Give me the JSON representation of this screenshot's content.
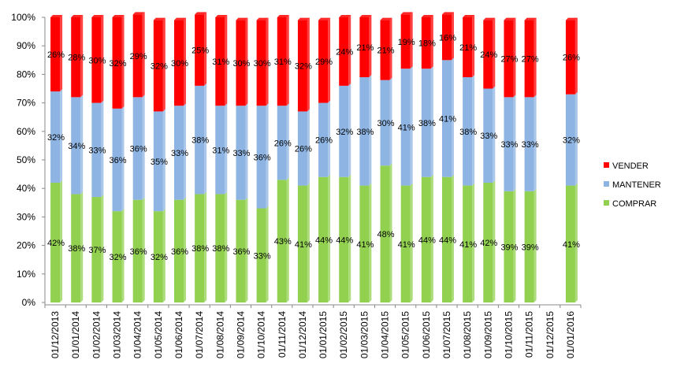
{
  "chart_data": {
    "type": "bar",
    "stacked": "percent",
    "categories": [
      "01/12/2013",
      "01/01/2014",
      "01/02/2014",
      "01/03/2014",
      "01/04/2014",
      "01/05/2014",
      "01/06/2014",
      "01/07/2014",
      "01/08/2014",
      "01/09/2014",
      "01/10/2014",
      "01/11/2014",
      "01/12/2014",
      "01/01/2015",
      "01/02/2015",
      "01/03/2015",
      "01/04/2015",
      "01/05/2015",
      "01/06/2015",
      "01/07/2015",
      "01/08/2015",
      "01/09/2015",
      "01/10/2015",
      "01/11/2015",
      "01/12/2015",
      "01/01/2016"
    ],
    "series": [
      {
        "name": "COMPRAR",
        "color": "#92d050",
        "values": [
          42,
          38,
          37,
          32,
          36,
          32,
          36,
          38,
          38,
          36,
          33,
          43,
          41,
          44,
          44,
          41,
          48,
          41,
          44,
          44,
          41,
          42,
          39,
          39,
          null,
          41
        ],
        "labels": [
          "42%",
          "38%",
          "37%",
          "32%",
          "36%",
          "32%",
          "36%",
          "38%",
          "38%",
          "36%",
          "33%",
          "43%",
          "41%",
          "44%",
          "44%",
          "41%",
          "48%",
          "41%",
          "44%",
          "44%",
          "41%",
          "42%",
          "39%",
          "39%",
          "",
          "41%"
        ]
      },
      {
        "name": "MANTENER",
        "color": "#8db4e2",
        "values": [
          32,
          34,
          33,
          36,
          36,
          35,
          33,
          38,
          31,
          33,
          36,
          26,
          26,
          26,
          32,
          38,
          30,
          41,
          38,
          41,
          38,
          33,
          33,
          33,
          null,
          32
        ],
        "labels": [
          "32%",
          "34%",
          "33%",
          "36%",
          "36%",
          "35%",
          "33%",
          "38%",
          "31%",
          "33%",
          "36%",
          "26%",
          "26%",
          "26%",
          "32%",
          "38%",
          "30%",
          "41%",
          "38%",
          "41%",
          "38%",
          "33%",
          "33%",
          "33%",
          "",
          "32%"
        ]
      },
      {
        "name": "VENDER",
        "color": "#ff0000",
        "values": [
          26,
          28,
          30,
          32,
          29,
          32,
          30,
          25,
          31,
          30,
          30,
          31,
          32,
          29,
          24,
          21,
          21,
          19,
          18,
          16,
          21,
          24,
          27,
          27,
          null,
          26
        ],
        "labels": [
          "26%",
          "28%",
          "30%",
          "32%",
          "29%",
          "32%",
          "30%",
          "25%",
          "31%",
          "30%",
          "30%",
          "31%",
          "32%",
          "29%",
          "24%",
          "21%",
          "21%",
          "19%",
          "18%",
          "16%",
          "21%",
          "24%",
          "27%",
          "27%",
          "",
          "26%"
        ]
      }
    ],
    "yticks": [
      "0%",
      "10%",
      "20%",
      "30%",
      "40%",
      "50%",
      "60%",
      "70%",
      "80%",
      "90%",
      "100%"
    ],
    "ylim": [
      0,
      100
    ],
    "legend": "right",
    "grid": false
  }
}
